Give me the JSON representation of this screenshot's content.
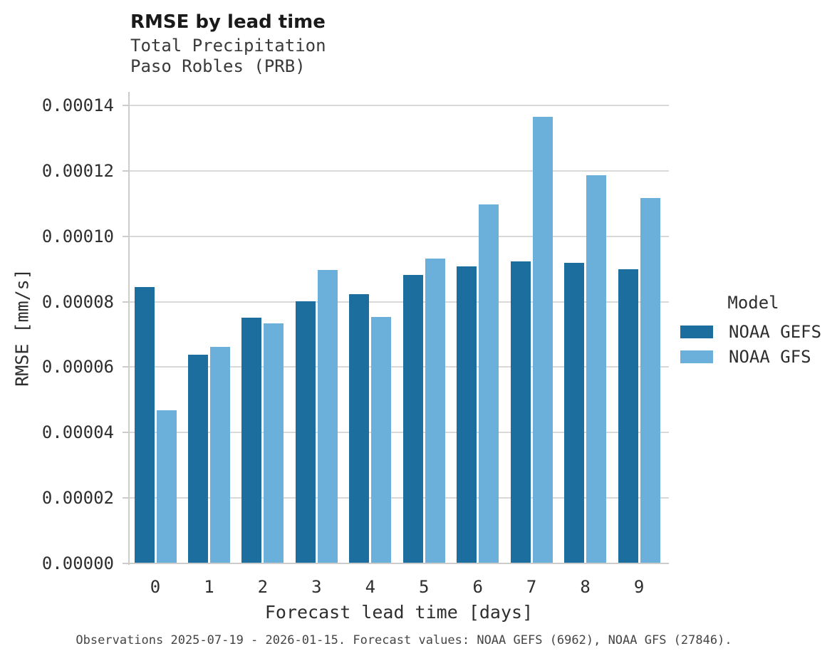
{
  "chart_data": {
    "type": "bar",
    "grouping": "dodged",
    "title": "RMSE by lead time",
    "subtitle": [
      "Total Precipitation",
      "Paso Robles (PRB)"
    ],
    "xlabel": "Forecast lead time [days]",
    "ylabel": "RMSE [mm/s]",
    "caption": "Observations 2025-07-19 - 2026-01-15. Forecast values: NOAA GEFS (6962), NOAA GFS (27846).",
    "categories": [
      "0",
      "1",
      "2",
      "3",
      "4",
      "5",
      "6",
      "7",
      "8",
      "9"
    ],
    "series": [
      {
        "name": "NOAA GEFS",
        "color": "#1B6E9E",
        "values": [
          8.47e-05,
          6.4e-05,
          7.53e-05,
          8.03e-05,
          8.25e-05,
          8.85e-05,
          9.1e-05,
          9.25e-05,
          9.21e-05,
          9.02e-05
        ]
      },
      {
        "name": "NOAA GFS",
        "color": "#6BB0DB",
        "values": [
          4.71e-05,
          6.63e-05,
          7.37e-05,
          8.99e-05,
          7.55e-05,
          9.34e-05,
          0.00011,
          0.0001367,
          0.0001189,
          0.0001119
        ]
      }
    ],
    "ylim": [
      0,
      0.000144
    ],
    "ytick_values": [
      0.0,
      2e-05,
      4e-05,
      6e-05,
      8e-05,
      0.0001,
      0.00012,
      0.00014
    ],
    "ytick_labels": [
      "0.00000",
      "0.00002",
      "0.00004",
      "0.00006",
      "0.00008",
      "0.00010",
      "0.00012",
      "0.00014"
    ],
    "grid": "horizontal",
    "legend_title": "Model",
    "legend_position": "right"
  }
}
